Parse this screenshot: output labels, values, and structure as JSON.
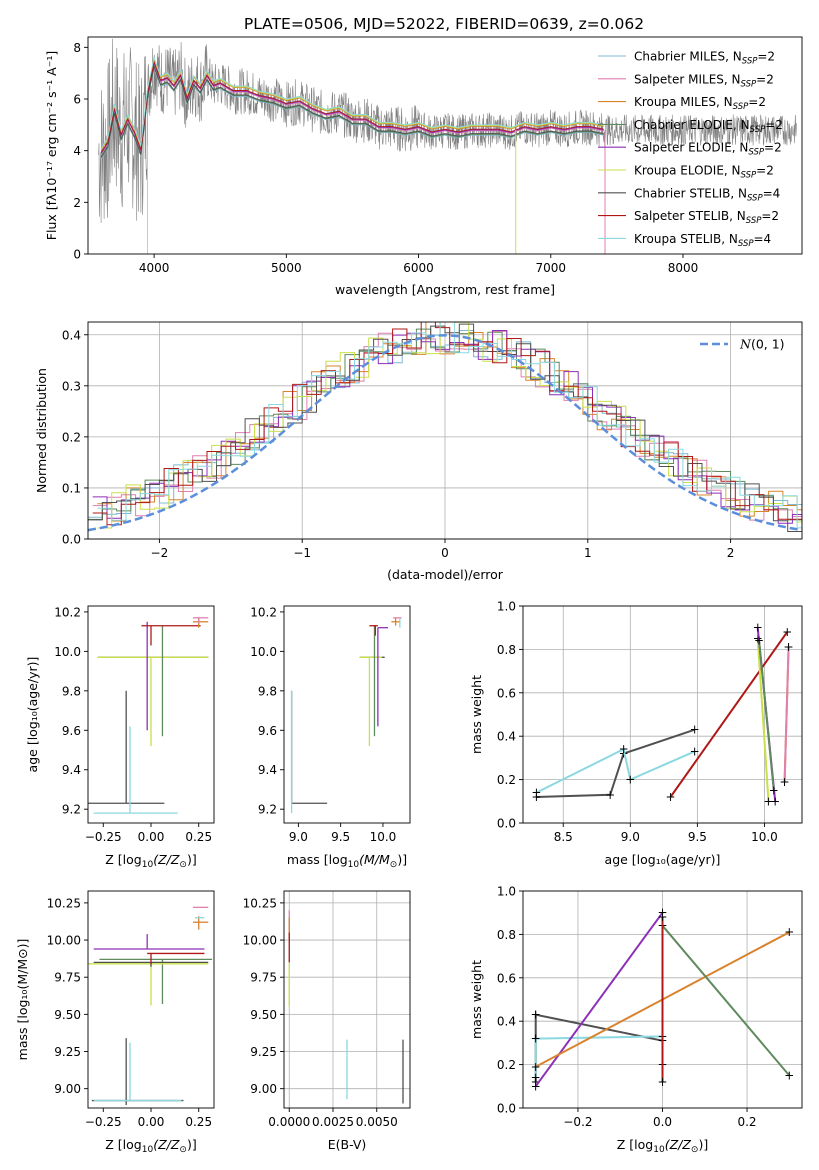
{
  "title": "PLATE=0506, MJD=52022, FIBERID=0639, z=0.062",
  "colors": {
    "Chabrier MILES": "#7fb8d0",
    "Salpeter MILES": "#e07fb0",
    "Kroupa MILES": "#d9832e",
    "Chabrier ELODIE": "#5e8a5e",
    "Salpeter ELODIE": "#8e2fb8",
    "Kroupa ELODIE": "#c9e04a",
    "Chabrier STELIB": "#505050",
    "Salpeter STELIB": "#b01818",
    "Kroupa STELIB": "#8ad8e0",
    "data": "#808080",
    "normal": "#5b8fdc"
  },
  "chart_data": [
    {
      "type": "line",
      "panel": "spectrum",
      "xlabel": "wavelength [Angstrom, rest frame]",
      "ylabel": "Flux [f_λ 10^-17 erg cm^-2 s^-1 A^-1]",
      "xlim": [
        3500,
        8900
      ],
      "ylim": [
        0,
        8.4
      ],
      "xticks": [
        4000,
        5000,
        6000,
        7000,
        8000
      ],
      "yticks": [
        0,
        2,
        4,
        6,
        8
      ],
      "legend_position": "upper right",
      "legend": [
        {
          "model": "Chabrier MILES",
          "base": "Chabrier MILES, N",
          "sub": "SSP",
          "tail": "=2"
        },
        {
          "model": "Salpeter MILES",
          "base": "Salpeter MILES, N",
          "sub": "SSP",
          "tail": "=2"
        },
        {
          "model": "Kroupa MILES",
          "base": "Kroupa MILES, N",
          "sub": "SSP",
          "tail": "=2"
        },
        {
          "model": "Chabrier ELODIE",
          "base": "Chabrier ELODIE, N",
          "sub": "SSP",
          "tail": "=2"
        },
        {
          "model": "Salpeter ELODIE",
          "base": "Salpeter ELODIE, N",
          "sub": "SSP",
          "tail": "=2"
        },
        {
          "model": "Kroupa ELODIE",
          "base": "Kroupa ELODIE, N",
          "sub": "SSP",
          "tail": "=2"
        },
        {
          "model": "Chabrier STELIB",
          "base": "Chabrier STELIB, N",
          "sub": "SSP",
          "tail": "=4"
        },
        {
          "model": "Salpeter STELIB",
          "base": "Salpeter STELIB, N",
          "sub": "SSP",
          "tail": "=2"
        },
        {
          "model": "Kroupa STELIB",
          "base": "Kroupa STELIB, N",
          "sub": "SSP",
          "tail": "=4"
        }
      ],
      "model_curve": {
        "x": [
          3600,
          3650,
          3700,
          3750,
          3800,
          3850,
          3900,
          3950,
          4000,
          4050,
          4100,
          4150,
          4200,
          4250,
          4300,
          4350,
          4400,
          4450,
          4500,
          4600,
          4700,
          4800,
          4900,
          5000,
          5100,
          5200,
          5300,
          5400,
          5500,
          5600,
          5700,
          5800,
          5900,
          6000,
          6100,
          6200,
          6300,
          6400,
          6500,
          6600,
          6700,
          6800,
          6900,
          7000,
          7100,
          7200,
          7300,
          7400
        ],
        "y": [
          3.9,
          4.3,
          5.6,
          4.6,
          5.2,
          4.7,
          4.0,
          6.2,
          7.4,
          6.7,
          6.8,
          6.5,
          6.9,
          6.0,
          6.7,
          6.4,
          6.9,
          6.5,
          6.6,
          6.3,
          6.3,
          6.1,
          6.0,
          5.8,
          5.9,
          5.6,
          5.4,
          5.5,
          5.2,
          5.2,
          4.9,
          4.9,
          4.8,
          4.9,
          4.7,
          4.8,
          4.7,
          4.8,
          4.8,
          4.8,
          4.7,
          4.9,
          4.8,
          4.9,
          4.8,
          4.9,
          4.9,
          4.8
        ]
      }
    },
    {
      "type": "bar",
      "panel": "residual_histogram",
      "xlabel": "(data-model)/error",
      "ylabel": "Normed distribution",
      "xlim": [
        -2.5,
        2.5
      ],
      "ylim": [
        0,
        0.425
      ],
      "xticks": [
        -2,
        -1,
        0,
        1,
        2
      ],
      "yticks": [
        0.0,
        0.1,
        0.2,
        0.3,
        0.4
      ],
      "grid": true,
      "normal_curve": {
        "mean": 0,
        "sigma": 1
      },
      "legend": {
        "label_prefix": "N",
        "label_suffix": "(0, 1)",
        "position": "upper right"
      }
    },
    {
      "type": "scatter",
      "panel": "age_vs_Z",
      "xlabel_main": "Z [log",
      "xlabel_sub": "10",
      "xlabel_tail": "(Z/Z",
      "xlabel_sun": "⊙",
      "xlabel_end": ")]",
      "ylabel": "age  [log10(age/yr)]",
      "xlim": [
        -0.33,
        0.33
      ],
      "ylim": [
        9.13,
        10.23
      ],
      "xticks": [
        -0.25,
        0.0,
        0.25
      ],
      "yticks": [
        9.2,
        9.4,
        9.6,
        9.8,
        10.0,
        10.2
      ],
      "points": [
        {
          "model": "Chabrier STELIB",
          "x": -0.13,
          "y": 9.23,
          "xerr": [
            0.28,
            0.2
          ],
          "yerr": [
            0,
            0.57
          ]
        },
        {
          "model": "Kroupa STELIB",
          "x": -0.11,
          "y": 9.18,
          "xerr": [
            0.19,
            0.25
          ],
          "yerr": [
            0,
            0.44
          ]
        },
        {
          "model": "Chabrier STELIB",
          "x": 0.0,
          "y": 9.97,
          "xerr": [
            0.28,
            0.3
          ],
          "yerr": [
            0,
            0
          ]
        },
        {
          "model": "Kroupa ELODIE",
          "x": 0.0,
          "y": 9.97,
          "xerr": [
            0.28,
            0.3
          ],
          "yerr": [
            0.45,
            0
          ]
        },
        {
          "model": "Salpeter ELODIE",
          "x": -0.02,
          "y": 10.12,
          "xerr": [
            0.0,
            0.0
          ],
          "yerr": [
            0.52,
            0.03
          ]
        },
        {
          "model": "Chabrier ELODIE",
          "x": 0.06,
          "y": 10.13,
          "xerr": [
            0.0,
            0.0
          ],
          "yerr": [
            0.56,
            0
          ]
        },
        {
          "model": "Salpeter STELIB",
          "x": 0.0,
          "y": 10.13,
          "xerr": [
            0.05,
            0.26
          ],
          "yerr": [
            0.1,
            0
          ]
        },
        {
          "model": "Kroupa MILES",
          "x": 0.25,
          "y": 10.15,
          "xerr": [
            0.03,
            0.05
          ],
          "yerr": [
            0.03,
            0.02
          ]
        },
        {
          "model": "Salpeter MILES",
          "x": 0.25,
          "y": 10.17,
          "xerr": [
            0.03,
            0.05
          ],
          "yerr": [
            0.03,
            0.0
          ]
        }
      ]
    },
    {
      "type": "scatter",
      "panel": "age_vs_mass",
      "xlabel_main": "mass [log",
      "xlabel_sub": "10",
      "xlabel_tail": "(M/M",
      "xlabel_sun": "⊙",
      "xlabel_end": ")]",
      "xlim": [
        8.83,
        10.32
      ],
      "ylim": [
        9.13,
        10.23
      ],
      "xticks": [
        9.0,
        9.5,
        10.0
      ],
      "yticks": [
        9.2,
        9.4,
        9.6,
        9.8,
        10.0,
        10.2
      ],
      "points": [
        {
          "model": "Chabrier STELIB",
          "x": 8.92,
          "y": 9.23,
          "xerr": [
            0.0,
            0.42
          ],
          "yerr": [
            0,
            0.57
          ]
        },
        {
          "model": "Kroupa STELIB",
          "x": 8.92,
          "y": 9.18,
          "xerr": [
            0.0,
            0.0
          ],
          "yerr": [
            0,
            0.62
          ]
        },
        {
          "model": "Chabrier STELIB",
          "x": 9.85,
          "y": 9.97,
          "xerr": [
            0.12,
            0.17
          ],
          "yerr": [
            0,
            0
          ]
        },
        {
          "model": "Kroupa ELODIE",
          "x": 9.84,
          "y": 9.97,
          "xerr": [
            0.12,
            0.15
          ],
          "yerr": [
            0.45,
            0
          ]
        },
        {
          "model": "Salpeter ELODIE",
          "x": 9.94,
          "y": 10.12,
          "xerr": [
            0.0,
            0.12
          ],
          "yerr": [
            0.5,
            0
          ]
        },
        {
          "model": "Chabrier ELODIE",
          "x": 9.9,
          "y": 10.13,
          "xerr": [
            0.0,
            0.0
          ],
          "yerr": [
            0.56,
            0
          ]
        },
        {
          "model": "Salpeter STELIB",
          "x": 9.91,
          "y": 10.13,
          "xerr": [
            0.07,
            0.03
          ],
          "yerr": [
            0.05,
            0
          ]
        },
        {
          "model": "Kroupa MILES",
          "x": 10.15,
          "y": 10.15,
          "xerr": [
            0.05,
            0.05
          ],
          "yerr": [
            0.02,
            0.02
          ]
        },
        {
          "model": "Salpeter MILES",
          "x": 10.17,
          "y": 10.17,
          "xerr": [
            0.05,
            0.05
          ],
          "yerr": [
            0.0,
            0.0
          ]
        },
        {
          "model": "Kroupa STELIB",
          "x": 10.2,
          "y": 10.15,
          "xerr": [
            0.0,
            0.0
          ],
          "yerr": [
            0.03,
            0.02
          ]
        }
      ]
    },
    {
      "type": "line",
      "panel": "weight_vs_age",
      "xlabel": "age  [log10(age/yr)]",
      "ylabel": "mass weight",
      "xlim": [
        8.2,
        10.28
      ],
      "ylim": [
        0,
        1.0
      ],
      "xticks": [
        8.5,
        9.0,
        9.5,
        10.0
      ],
      "yticks": [
        0.0,
        0.2,
        0.4,
        0.6,
        0.8,
        1.0
      ],
      "grid": true,
      "series": [
        {
          "model": "Chabrier STELIB",
          "x": [
            8.3,
            8.85,
            8.95,
            9.48
          ],
          "y": [
            0.12,
            0.13,
            0.32,
            0.43
          ]
        },
        {
          "model": "Kroupa STELIB",
          "x": [
            8.3,
            8.95,
            9.0,
            9.48
          ],
          "y": [
            0.14,
            0.34,
            0.2,
            0.33
          ]
        },
        {
          "model": "Salpeter STELIB",
          "x": [
            9.3,
            10.17
          ],
          "y": [
            0.12,
            0.88
          ]
        },
        {
          "model": "Kroupa ELODIE",
          "x": [
            9.95,
            10.03
          ],
          "y": [
            0.85,
            0.1
          ]
        },
        {
          "model": "Salpeter ELODIE",
          "x": [
            9.95,
            10.08
          ],
          "y": [
            0.9,
            0.1
          ]
        },
        {
          "model": "Chabrier ELODIE",
          "x": [
            9.96,
            10.07
          ],
          "y": [
            0.84,
            0.15
          ]
        },
        {
          "model": "Kroupa MILES",
          "x": [
            10.15,
            10.18
          ],
          "y": [
            0.19,
            0.81
          ]
        },
        {
          "model": "Salpeter MILES",
          "x": [
            10.15,
            10.18
          ],
          "y": [
            0.19,
            0.81
          ]
        }
      ]
    },
    {
      "type": "scatter",
      "panel": "mass_vs_Z",
      "xlabel_main": "Z [log",
      "xlabel_sub": "10",
      "xlabel_tail": "(Z/Z",
      "xlabel_sun": "⊙",
      "xlabel_end": ")]",
      "ylabel": "mass [log10(M/M⊙)]",
      "xlim": [
        -0.33,
        0.33
      ],
      "ylim": [
        8.87,
        10.33
      ],
      "xticks": [
        -0.25,
        0.0,
        0.25
      ],
      "yticks": [
        9.0,
        9.25,
        9.5,
        9.75,
        10.0,
        10.25
      ],
      "points": [
        {
          "model": "Chabrier STELIB",
          "x": -0.13,
          "y": 8.92,
          "xerr": [
            0.18,
            0.3
          ],
          "yerr": [
            0.03,
            0.42
          ]
        },
        {
          "model": "Kroupa STELIB",
          "x": -0.11,
          "y": 8.92,
          "xerr": [
            0.19,
            0.27
          ],
          "yerr": [
            0,
            0.39
          ]
        },
        {
          "model": "Salpeter ELODIE",
          "x": -0.02,
          "y": 9.94,
          "xerr": [
            0.28,
            0.3
          ],
          "yerr": [
            0.0,
            0.1
          ]
        },
        {
          "model": "Chabrier ELODIE",
          "x": 0.06,
          "y": 9.87,
          "xerr": [
            0.33,
            0.26
          ],
          "yerr": [
            0.3,
            0.0
          ]
        },
        {
          "model": "Kroupa ELODIE",
          "x": 0.0,
          "y": 9.84,
          "xerr": [
            0.33,
            0.3
          ],
          "yerr": [
            0.28,
            0
          ]
        },
        {
          "model": "Chabrier STELIB",
          "x": 0.0,
          "y": 9.85,
          "xerr": [
            0.3,
            0.3
          ],
          "yerr": [
            0.03,
            0
          ]
        },
        {
          "model": "Salpeter STELIB",
          "x": 0.0,
          "y": 9.91,
          "xerr": [
            0.02,
            0.28
          ],
          "yerr": [
            0.07,
            0
          ]
        },
        {
          "model": "Kroupa MILES",
          "x": 0.25,
          "y": 10.12,
          "xerr": [
            0.03,
            0.05
          ],
          "yerr": [
            0.05,
            0.04
          ]
        },
        {
          "model": "Salpeter MILES",
          "x": 0.25,
          "y": 10.22,
          "xerr": [
            0.03,
            0.05
          ],
          "yerr": [
            0.0,
            0.0
          ]
        },
        {
          "model": "Kroupa STELIB",
          "x": 0.25,
          "y": 10.15,
          "xerr": [
            0.02,
            0.03
          ],
          "yerr": [
            0.0,
            0.0
          ]
        }
      ]
    },
    {
      "type": "scatter",
      "panel": "mass_vs_EBV",
      "xlabel": "E(B-V)",
      "xlim": [
        -0.0003,
        0.0069
      ],
      "ylim": [
        8.87,
        10.33
      ],
      "xticks": [
        0.0,
        0.0025,
        0.005
      ],
      "xticklabels": [
        "0.0000",
        "0.0025",
        "0.0050"
      ],
      "yticks": [
        9.0,
        9.25,
        9.5,
        9.75,
        10.0,
        10.25
      ],
      "grid": true,
      "points": [
        {
          "model": "Kroupa ELODIE",
          "x": 0.0,
          "y": 9.75,
          "xerr": [
            0,
            0
          ],
          "yerr": [
            0.2,
            0.1
          ]
        },
        {
          "model": "Salpeter MILES",
          "x": 0.0,
          "y": 10.1,
          "xerr": [
            0,
            0
          ],
          "yerr": [
            0.1,
            0.1
          ]
        },
        {
          "model": "Kroupa MILES",
          "x": 0.0,
          "y": 10.05,
          "xerr": [
            0,
            0
          ],
          "yerr": [
            0.05,
            0.1
          ]
        },
        {
          "model": "Salpeter STELIB",
          "x": 0.0,
          "y": 9.95,
          "xerr": [
            0,
            0
          ],
          "yerr": [
            0.1,
            0.1
          ]
        },
        {
          "model": "Kroupa STELIB",
          "x": 0.0033,
          "y": 9.1,
          "xerr": [
            0,
            0
          ],
          "yerr": [
            0.17,
            0.23
          ]
        },
        {
          "model": "Chabrier STELIB",
          "x": 0.0065,
          "y": 9.1,
          "xerr": [
            0,
            0
          ],
          "yerr": [
            0.2,
            0.23
          ]
        }
      ]
    },
    {
      "type": "line",
      "panel": "weight_vs_Z",
      "xlabel_main": "Z [log",
      "xlabel_sub": "10",
      "xlabel_tail": "(Z/Z",
      "xlabel_sun": "⊙",
      "xlabel_end": ")]",
      "ylabel": "mass weight",
      "xlim": [
        -0.33,
        0.33
      ],
      "ylim": [
        0,
        1.0
      ],
      "xticks": [
        -0.2,
        0.0,
        0.2
      ],
      "yticks": [
        0.0,
        0.2,
        0.4,
        0.6,
        0.8,
        1.0
      ],
      "grid": true,
      "series": [
        {
          "model": "Chabrier STELIB",
          "x": [
            -0.3,
            0.0
          ],
          "y": [
            0.43,
            0.31
          ]
        },
        {
          "model": "Chabrier STELIB",
          "x": [
            -0.3,
            -0.3
          ],
          "y": [
            0.12,
            0.43
          ]
        },
        {
          "model": "Kroupa STELIB",
          "x": [
            -0.3,
            0.0,
            0.0
          ],
          "y": [
            0.32,
            0.33,
            0.2
          ]
        },
        {
          "model": "Kroupa STELIB",
          "x": [
            -0.3,
            -0.3
          ],
          "y": [
            0.14,
            0.32
          ]
        },
        {
          "model": "Salpeter ELODIE",
          "x": [
            -0.3,
            0.0
          ],
          "y": [
            0.1,
            0.9
          ]
        },
        {
          "model": "Kroupa MILES",
          "x": [
            -0.3,
            0.3
          ],
          "y": [
            0.19,
            0.81
          ]
        },
        {
          "model": "Chabrier ELODIE",
          "x": [
            0.0,
            0.3
          ],
          "y": [
            0.84,
            0.15
          ]
        },
        {
          "model": "Salpeter STELIB",
          "x": [
            0.0,
            0.0
          ],
          "y": [
            0.12,
            0.88
          ]
        }
      ]
    }
  ]
}
